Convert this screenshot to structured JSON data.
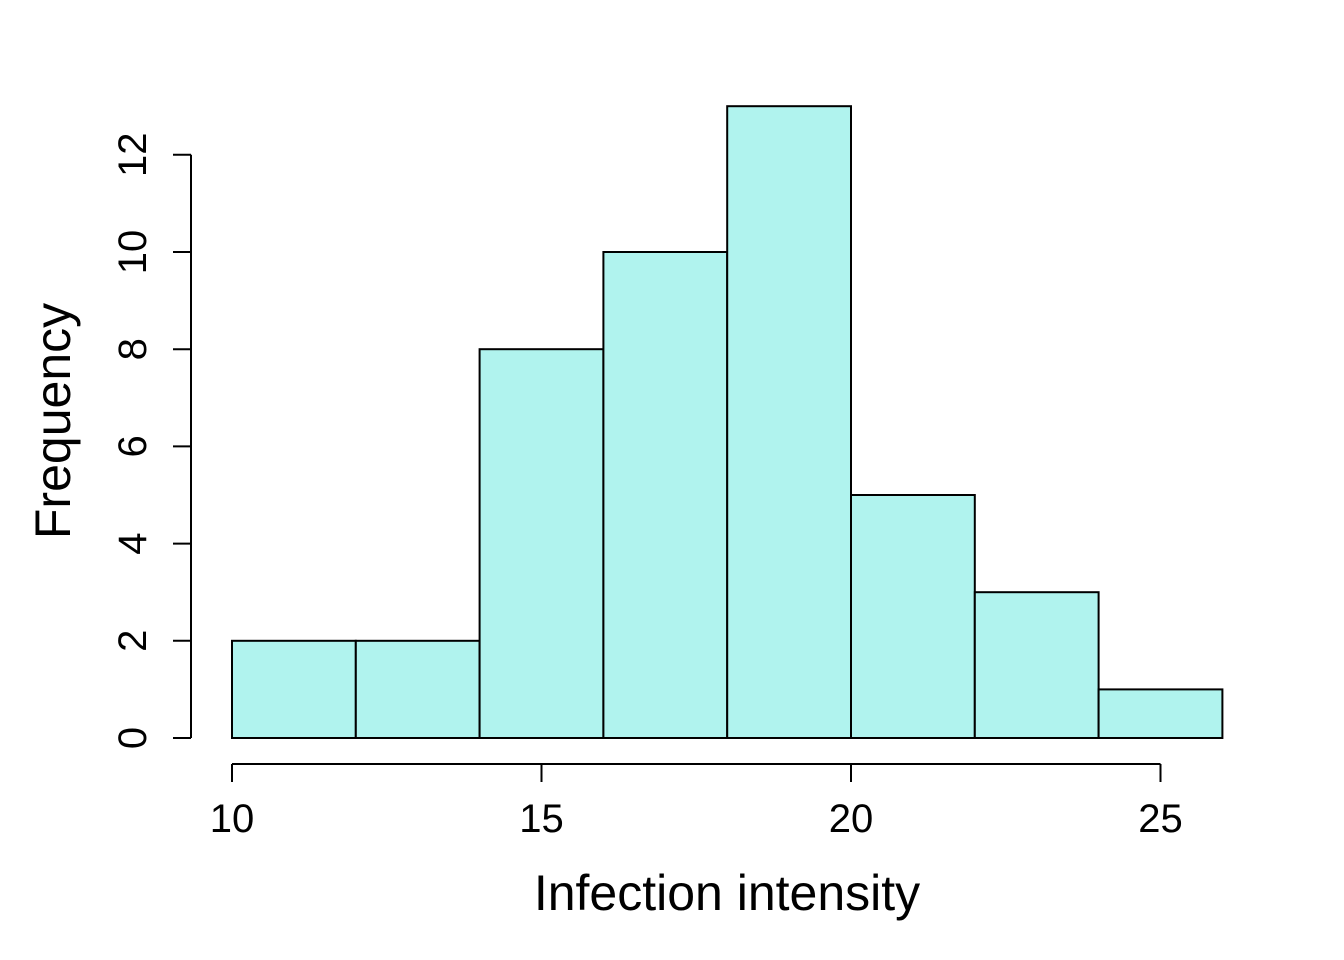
{
  "chart_data": {
    "type": "bar",
    "subtype": "histogram",
    "title": "",
    "xlabel": "Infection intensity",
    "ylabel": "Frequency",
    "bins": [
      {
        "start": 10,
        "end": 12,
        "count": 2
      },
      {
        "start": 12,
        "end": 14,
        "count": 2
      },
      {
        "start": 14,
        "end": 16,
        "count": 8
      },
      {
        "start": 16,
        "end": 18,
        "count": 10
      },
      {
        "start": 18,
        "end": 20,
        "count": 13
      },
      {
        "start": 20,
        "end": 22,
        "count": 5
      },
      {
        "start": 22,
        "end": 24,
        "count": 3
      },
      {
        "start": 24,
        "end": 26,
        "count": 1
      }
    ],
    "xticks": [
      10,
      15,
      20,
      25
    ],
    "xtick_labels": [
      "10",
      "15",
      "20",
      "25"
    ],
    "yticks": [
      0,
      2,
      4,
      6,
      8,
      10,
      12
    ],
    "ytick_labels": [
      "0",
      "2",
      "4",
      "6",
      "8",
      "10",
      "12"
    ],
    "xlim": [
      10,
      26
    ],
    "ylim": [
      0,
      13
    ],
    "grid": false,
    "legend": "none",
    "colors": {
      "bar_fill": "#B0F3EE",
      "bar_stroke": "#000000",
      "axis": "#000000"
    }
  }
}
